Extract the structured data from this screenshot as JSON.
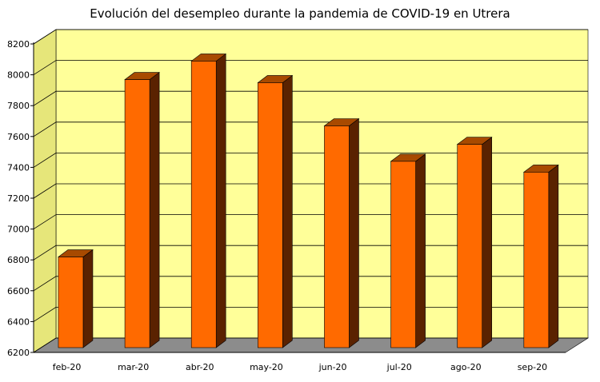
{
  "chart_data": {
    "type": "bar",
    "title": "Evolución del desempleo durante la pandemia de COVID-19 en Utrera",
    "xlabel": "",
    "ylabel": "",
    "categories": [
      "feb-20",
      "mar-20",
      "abr-20",
      "may-20",
      "jun-20",
      "jul-20",
      "ago-20",
      "sep-20"
    ],
    "values": [
      6850,
      8000,
      8120,
      7980,
      7700,
      7470,
      7580,
      7400
    ],
    "ylim": [
      6200,
      8200
    ],
    "yticks": [
      6200,
      6400,
      6600,
      6800,
      7000,
      7200,
      7400,
      7600,
      7800,
      8000,
      8200
    ],
    "grid": true,
    "colors": {
      "bar_front": "#ff6a00",
      "bar_side": "#5a2200",
      "bar_top": "#a84a00",
      "back_wall": "#ffff99",
      "floor": "#8c8c8c"
    }
  }
}
